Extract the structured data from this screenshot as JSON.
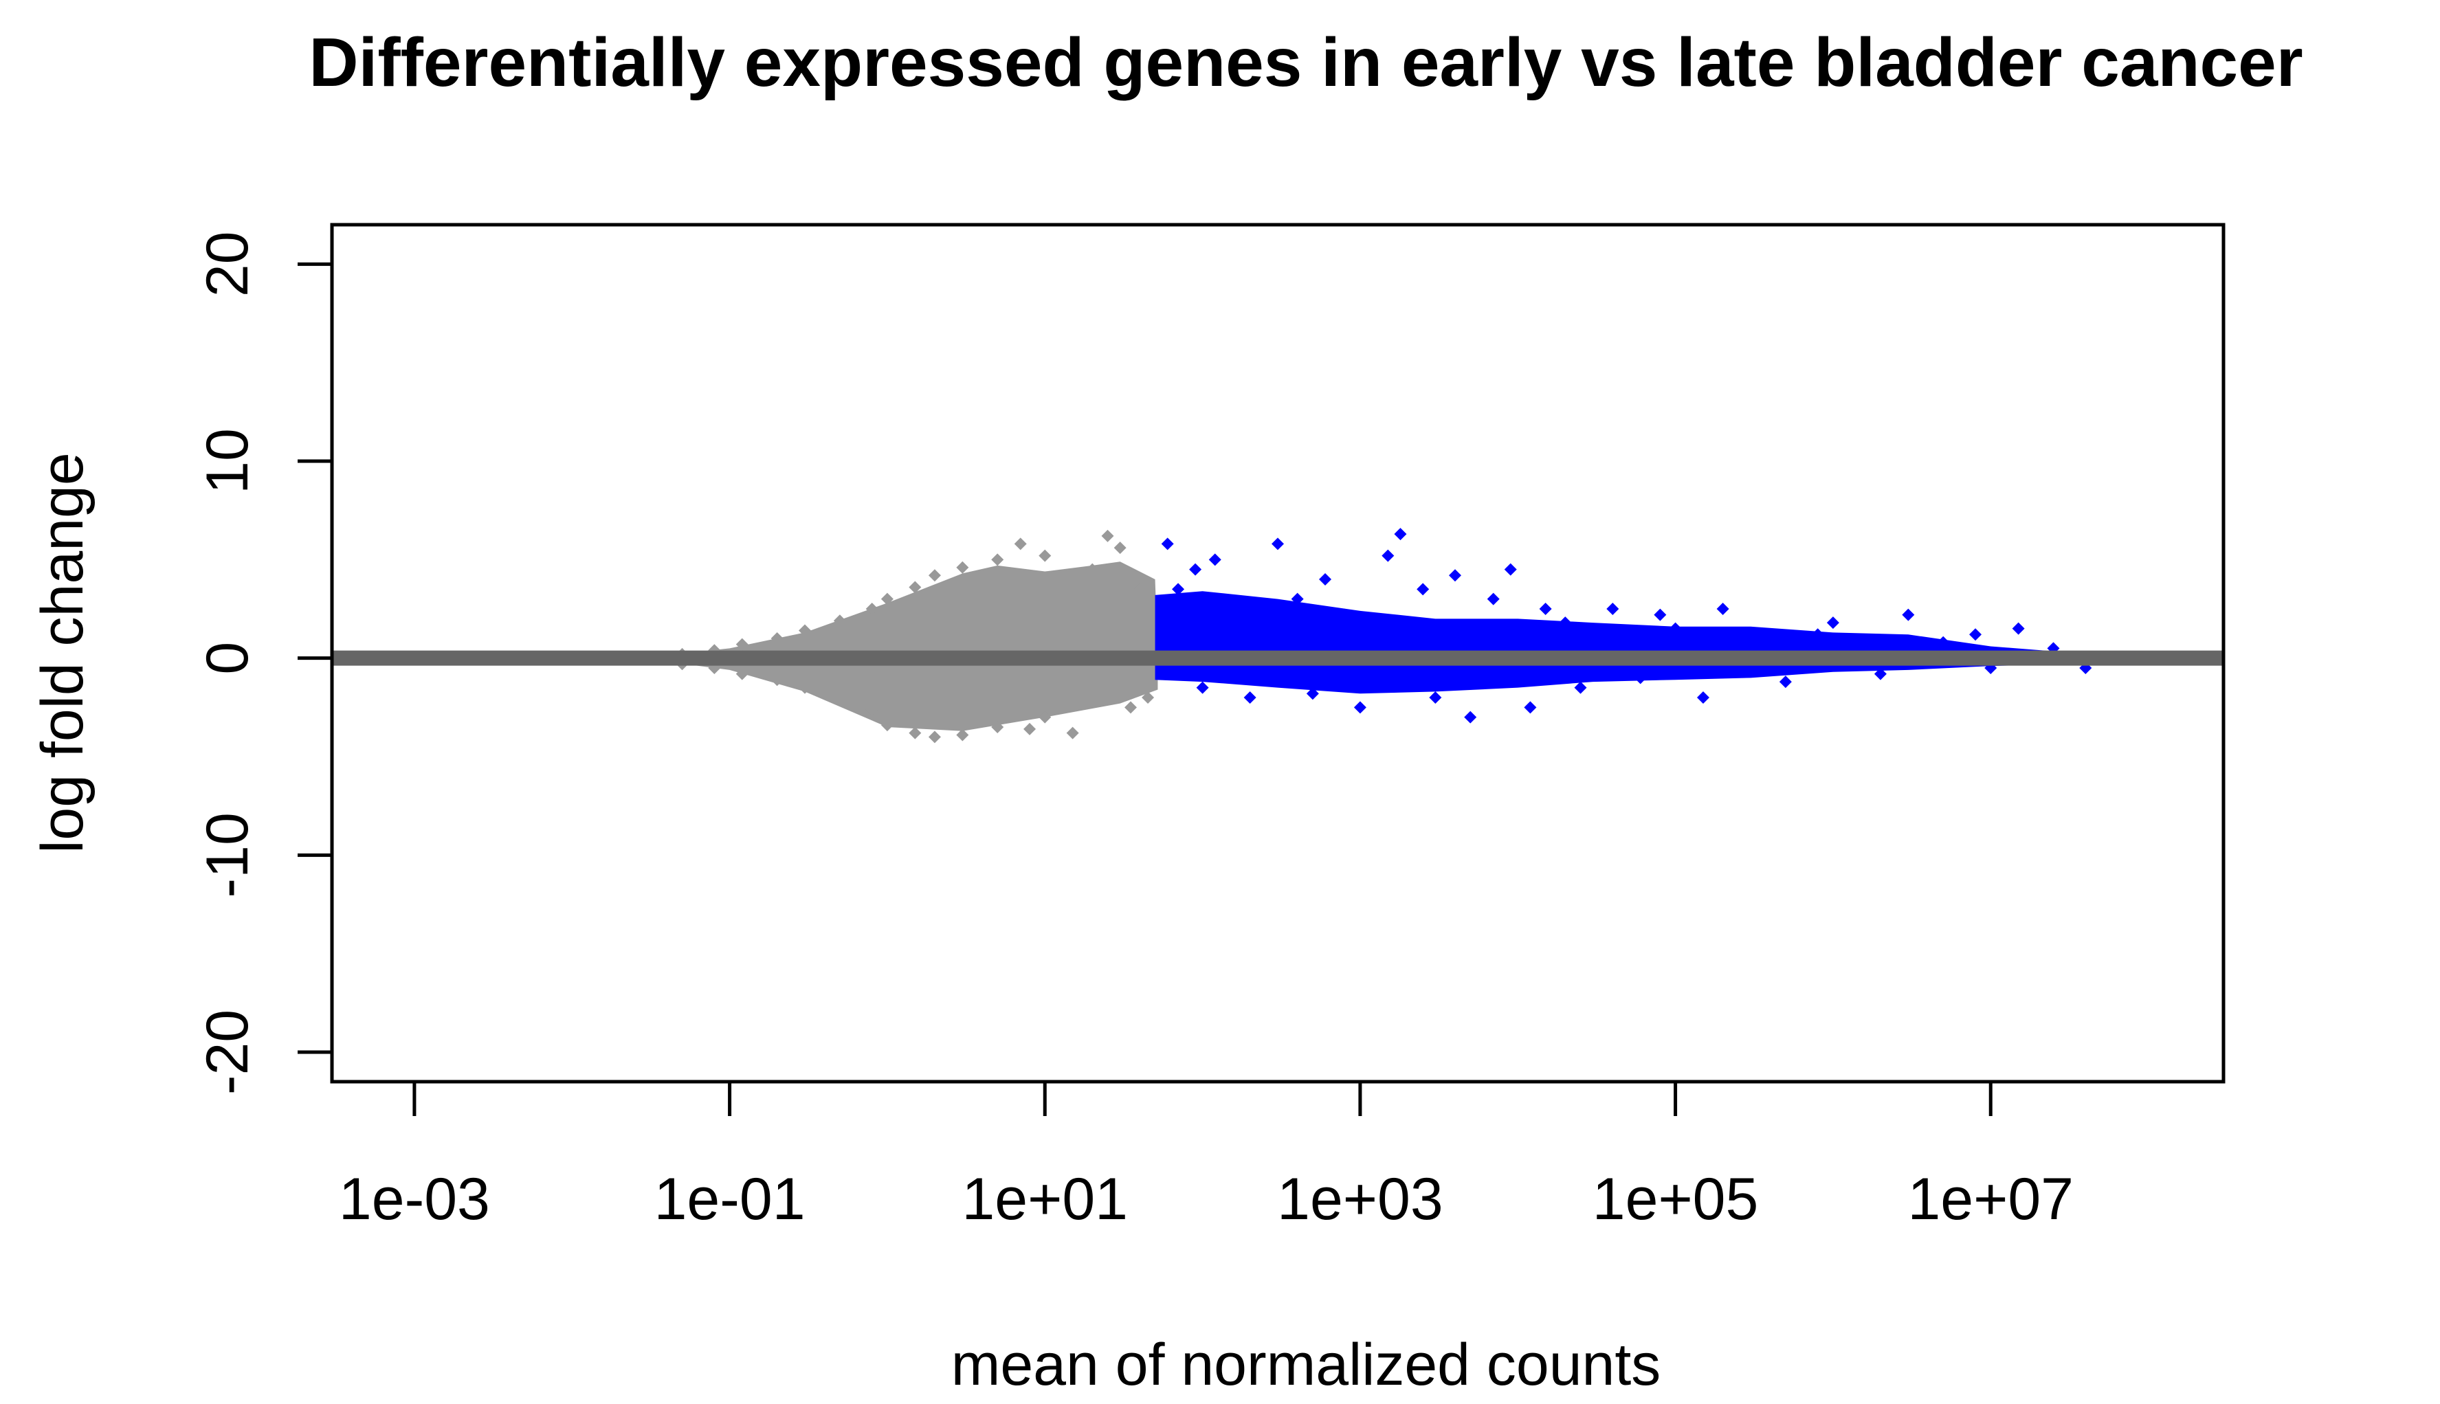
{
  "chart_data": {
    "type": "scatter",
    "title": "Differentially expressed genes in early vs late bladder cancer",
    "xlabel": "mean of normalized counts",
    "ylabel": "log fold change",
    "x_scale": "log10",
    "xlim": [
      0.0003,
      300000000.0
    ],
    "ylim": [
      -21.5,
      22
    ],
    "x_ticks": [
      {
        "value": 0.001,
        "label": "1e-03"
      },
      {
        "value": 0.1,
        "label": "1e-01"
      },
      {
        "value": 10,
        "label": "1e+01"
      },
      {
        "value": 1000,
        "label": "1e+03"
      },
      {
        "value": 100000,
        "label": "1e+05"
      },
      {
        "value": 10000000,
        "label": "1e+07"
      }
    ],
    "y_ticks": [
      {
        "value": -20,
        "label": "-20"
      },
      {
        "value": -10,
        "label": "-10"
      },
      {
        "value": 0,
        "label": "0"
      },
      {
        "value": 10,
        "label": "10"
      },
      {
        "value": 20,
        "label": "20"
      }
    ],
    "grid": false,
    "reference_line": {
      "y": 0,
      "color": "#666666"
    },
    "colors": {
      "not_significant": "#999999",
      "significant": "#0000FF",
      "zero_line": "#666666"
    },
    "series": [
      {
        "color": "#999999",
        "points": [
          [
            0.03,
            0.0
          ],
          [
            0.05,
            0.2
          ],
          [
            0.05,
            -0.3
          ],
          [
            0.08,
            0.4
          ],
          [
            0.08,
            -0.5
          ],
          [
            0.12,
            0.7
          ],
          [
            0.12,
            -0.8
          ],
          [
            0.2,
            1.0
          ],
          [
            0.2,
            -1.1
          ],
          [
            0.3,
            1.4
          ],
          [
            0.3,
            -1.5
          ],
          [
            0.5,
            1.9
          ],
          [
            0.5,
            -2.0
          ],
          [
            0.8,
            2.5
          ],
          [
            0.8,
            -2.6
          ],
          [
            1.0,
            3.0
          ],
          [
            1.0,
            -3.4
          ],
          [
            1.5,
            3.6
          ],
          [
            1.5,
            -3.8
          ],
          [
            2.0,
            4.2
          ],
          [
            2.0,
            -4.0
          ],
          [
            3.0,
            4.6
          ],
          [
            3.0,
            -3.9
          ],
          [
            5.0,
            5.0
          ],
          [
            5.0,
            -3.5
          ],
          [
            7.0,
            5.8
          ],
          [
            8.0,
            -3.6
          ],
          [
            10.0,
            5.2
          ],
          [
            10.0,
            -3.0
          ],
          [
            12.0,
            4.0
          ],
          [
            15.0,
            -3.8
          ],
          [
            20.0,
            4.5
          ],
          [
            25.0,
            6.2
          ],
          [
            30.0,
            5.6
          ],
          [
            35.0,
            -2.5
          ],
          [
            40.0,
            3.5
          ],
          [
            45.0,
            -2.0
          ],
          [
            0.6,
            1.2
          ],
          [
            0.9,
            -1.0
          ],
          [
            1.2,
            2.0
          ],
          [
            2.5,
            -2.5
          ],
          [
            4.0,
            3.0
          ],
          [
            6.0,
            -2.0
          ],
          [
            9.0,
            2.5
          ],
          [
            18.0,
            -1.5
          ]
        ]
      },
      {
        "color": "#0000FF",
        "points": [
          [
            60,
            5.8
          ],
          [
            70,
            3.5
          ],
          [
            90,
            4.5
          ],
          [
            100,
            -1.5
          ],
          [
            120,
            5.0
          ],
          [
            150,
            2.5
          ],
          [
            200,
            -2.0
          ],
          [
            300,
            5.8
          ],
          [
            400,
            3.0
          ],
          [
            500,
            -1.8
          ],
          [
            600,
            4.0
          ],
          [
            800,
            2.2
          ],
          [
            1000,
            -2.5
          ],
          [
            1500,
            5.2
          ],
          [
            1800,
            6.3
          ],
          [
            2500,
            3.5
          ],
          [
            3000,
            -2.0
          ],
          [
            4000,
            4.2
          ],
          [
            5000,
            -3.0
          ],
          [
            7000,
            3.0
          ],
          [
            9000,
            4.5
          ],
          [
            12000,
            -2.5
          ],
          [
            15000,
            2.5
          ],
          [
            20000,
            1.8
          ],
          [
            25000,
            -1.5
          ],
          [
            40000,
            2.5
          ],
          [
            60000,
            -1.0
          ],
          [
            80000,
            2.2
          ],
          [
            100000,
            1.5
          ],
          [
            150000,
            -2.0
          ],
          [
            200000,
            2.5
          ],
          [
            300000,
            1.0
          ],
          [
            500000,
            -1.2
          ],
          [
            800000,
            1.2
          ],
          [
            1000000,
            1.8
          ],
          [
            2000000,
            -0.8
          ],
          [
            3000000,
            2.2
          ],
          [
            5000000,
            0.8
          ],
          [
            8000000,
            1.2
          ],
          [
            10000000,
            -0.5
          ],
          [
            15000000,
            1.5
          ],
          [
            25000000,
            0.5
          ],
          [
            40000000,
            -0.5
          ],
          [
            80,
            -0.5
          ],
          [
            250,
            1.2
          ],
          [
            700,
            0.8
          ],
          [
            2000,
            -1.0
          ],
          [
            6000,
            1.0
          ],
          [
            30000,
            0.5
          ],
          [
            400000,
            0.6
          ]
        ]
      }
    ]
  }
}
